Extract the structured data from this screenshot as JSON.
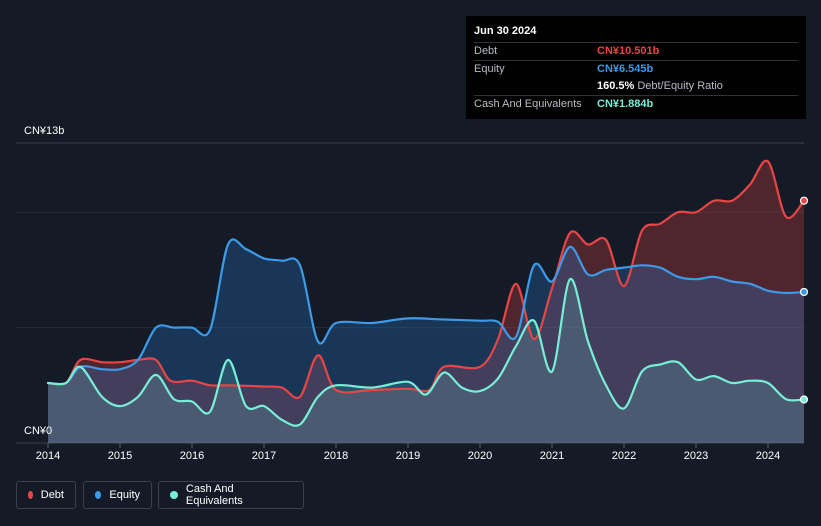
{
  "tooltip": {
    "date": "Jun 30 2024",
    "rows": [
      {
        "label": "Debt",
        "value": "CN¥10.501b",
        "color": "#e84546"
      },
      {
        "label": "Equity",
        "value": "CN¥6.545b",
        "color": "#3c9ae8"
      },
      {
        "label": "",
        "value": "160.5%",
        "suffix": "Debt/Equity Ratio",
        "color": "#ffffff"
      },
      {
        "label": "Cash And Equivalents",
        "value": "CN¥1.884b",
        "color": "#76eed8"
      }
    ]
  },
  "legend": [
    {
      "label": "Debt",
      "color": "#e84546"
    },
    {
      "label": "Equity",
      "color": "#3c9ae8"
    },
    {
      "label": "Cash And Equivalents",
      "color": "#76eed8"
    }
  ],
  "chart_data": {
    "type": "area",
    "ylim": [
      0,
      13
    ],
    "y_unit": "CN¥ billions",
    "y_tick_labels": [
      "CN¥13b",
      "CN¥0"
    ],
    "x_tick_labels": [
      "2014",
      "2015",
      "2016",
      "2017",
      "2018",
      "2019",
      "2020",
      "2021",
      "2022",
      "2023",
      "2024"
    ],
    "xlim": [
      2014.0,
      2024.5
    ],
    "grid": true,
    "legend_position": "bottom-left",
    "series": [
      {
        "name": "Debt",
        "color": "#e84546",
        "x": [
          2014.0,
          2014.25,
          2014.45,
          2014.75,
          2015.0,
          2015.25,
          2015.5,
          2015.7,
          2016.0,
          2016.25,
          2016.5,
          2017.0,
          2017.25,
          2017.5,
          2017.75,
          2018.0,
          2018.5,
          2019.0,
          2019.3,
          2019.5,
          2020.0,
          2020.25,
          2020.5,
          2020.75,
          2021.0,
          2021.25,
          2021.5,
          2021.75,
          2022.0,
          2022.25,
          2022.5,
          2022.75,
          2023.0,
          2023.25,
          2023.5,
          2023.75,
          2024.0,
          2024.25,
          2024.5
        ],
        "values": [
          2.6,
          2.6,
          3.6,
          3.5,
          3.5,
          3.6,
          3.6,
          2.7,
          2.7,
          2.5,
          2.5,
          2.45,
          2.4,
          2.0,
          3.8,
          2.3,
          2.3,
          2.35,
          2.3,
          3.3,
          3.3,
          4.5,
          6.9,
          4.5,
          6.7,
          9.1,
          8.6,
          8.8,
          6.8,
          9.2,
          9.5,
          10.0,
          10.0,
          10.5,
          10.5,
          11.2,
          12.2,
          9.8,
          10.501
        ]
      },
      {
        "name": "Equity",
        "color": "#3c9ae8",
        "x": [
          2014.0,
          2014.25,
          2014.45,
          2014.75,
          2015.0,
          2015.25,
          2015.5,
          2015.75,
          2016.0,
          2016.25,
          2016.5,
          2016.75,
          2017.0,
          2017.25,
          2017.5,
          2017.75,
          2018.0,
          2018.5,
          2019.0,
          2019.5,
          2020.0,
          2020.25,
          2020.5,
          2020.75,
          2021.0,
          2021.25,
          2021.5,
          2021.75,
          2022.0,
          2022.25,
          2022.5,
          2022.75,
          2023.0,
          2023.25,
          2023.5,
          2023.75,
          2024.0,
          2024.25,
          2024.5
        ],
        "values": [
          2.6,
          2.6,
          3.3,
          3.2,
          3.2,
          3.6,
          5.0,
          5.0,
          5.0,
          4.9,
          8.6,
          8.4,
          8.0,
          7.9,
          7.7,
          4.4,
          5.2,
          5.2,
          5.4,
          5.35,
          5.3,
          5.25,
          4.6,
          7.7,
          7.0,
          8.5,
          7.3,
          7.5,
          7.6,
          7.7,
          7.6,
          7.2,
          7.1,
          7.2,
          7.0,
          6.9,
          6.6,
          6.5,
          6.545
        ]
      },
      {
        "name": "Cash And Equivalents",
        "color": "#76eed8",
        "x": [
          2014.0,
          2014.25,
          2014.45,
          2014.75,
          2015.0,
          2015.25,
          2015.5,
          2015.75,
          2016.0,
          2016.25,
          2016.5,
          2016.75,
          2017.0,
          2017.25,
          2017.5,
          2017.75,
          2018.0,
          2018.5,
          2019.0,
          2019.25,
          2019.5,
          2019.75,
          2020.0,
          2020.25,
          2020.5,
          2020.75,
          2021.0,
          2021.25,
          2021.5,
          2021.75,
          2022.0,
          2022.25,
          2022.5,
          2022.75,
          2023.0,
          2023.25,
          2023.5,
          2023.75,
          2024.0,
          2024.25,
          2024.5
        ],
        "values": [
          2.6,
          2.6,
          3.3,
          2.0,
          1.6,
          2.0,
          2.95,
          1.9,
          1.8,
          1.35,
          3.6,
          1.6,
          1.6,
          1.0,
          0.8,
          2.0,
          2.5,
          2.4,
          2.65,
          2.1,
          3.05,
          2.4,
          2.25,
          2.8,
          4.2,
          5.3,
          3.1,
          7.1,
          4.4,
          2.5,
          1.5,
          3.1,
          3.4,
          3.5,
          2.75,
          2.9,
          2.6,
          2.7,
          2.6,
          1.9,
          1.884
        ]
      }
    ]
  }
}
